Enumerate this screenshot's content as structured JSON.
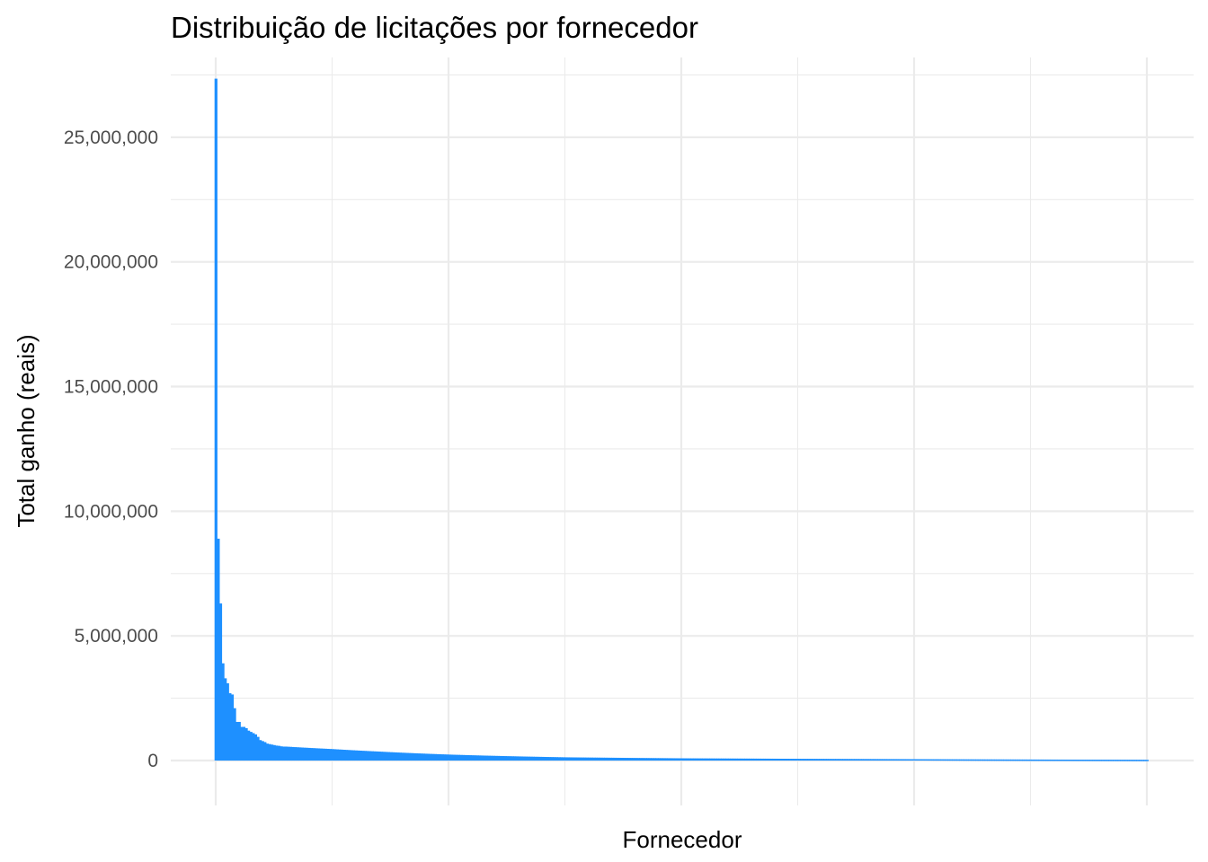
{
  "chart_data": {
    "type": "bar",
    "title": "Distribuição de licitações por fornecedor",
    "xlabel": "Fornecedor",
    "ylabel": "Total ganho (reais)",
    "ylim": [
      -1800000,
      28200000
    ],
    "yticks": [
      {
        "value": 0,
        "label": "0"
      },
      {
        "value": 5000000,
        "label": "5,000,000"
      },
      {
        "value": 10000000,
        "label": "10,000,000"
      },
      {
        "value": 15000000,
        "label": "15,000,000"
      },
      {
        "value": 20000000,
        "label": "20,000,000"
      },
      {
        "value": 25000000,
        "label": "25,000,000"
      }
    ],
    "x_tick_labels_shown": false,
    "n_suppliers": 400,
    "bar_color": "#1E90FF",
    "grid": true,
    "top_values": [
      27350000,
      8900000,
      6300000,
      3900000,
      3300000,
      3100000,
      2700000,
      2650000,
      2100000,
      1550000,
      1550000,
      1350000,
      1350000,
      1300000,
      1200000,
      1150000,
      1100000,
      1050000,
      950000,
      820000,
      780000,
      740000,
      680000,
      660000,
      640000,
      620000,
      600000,
      590000,
      570000,
      560000
    ],
    "tail_profile": [
      {
        "rank": 30,
        "value": 560000
      },
      {
        "rank": 50,
        "value": 460000
      },
      {
        "rank": 70,
        "value": 360000
      },
      {
        "rank": 100,
        "value": 240000
      },
      {
        "rank": 150,
        "value": 130000
      },
      {
        "rank": 200,
        "value": 90000
      },
      {
        "rank": 300,
        "value": 55000
      },
      {
        "rank": 399,
        "value": 30000
      }
    ]
  }
}
